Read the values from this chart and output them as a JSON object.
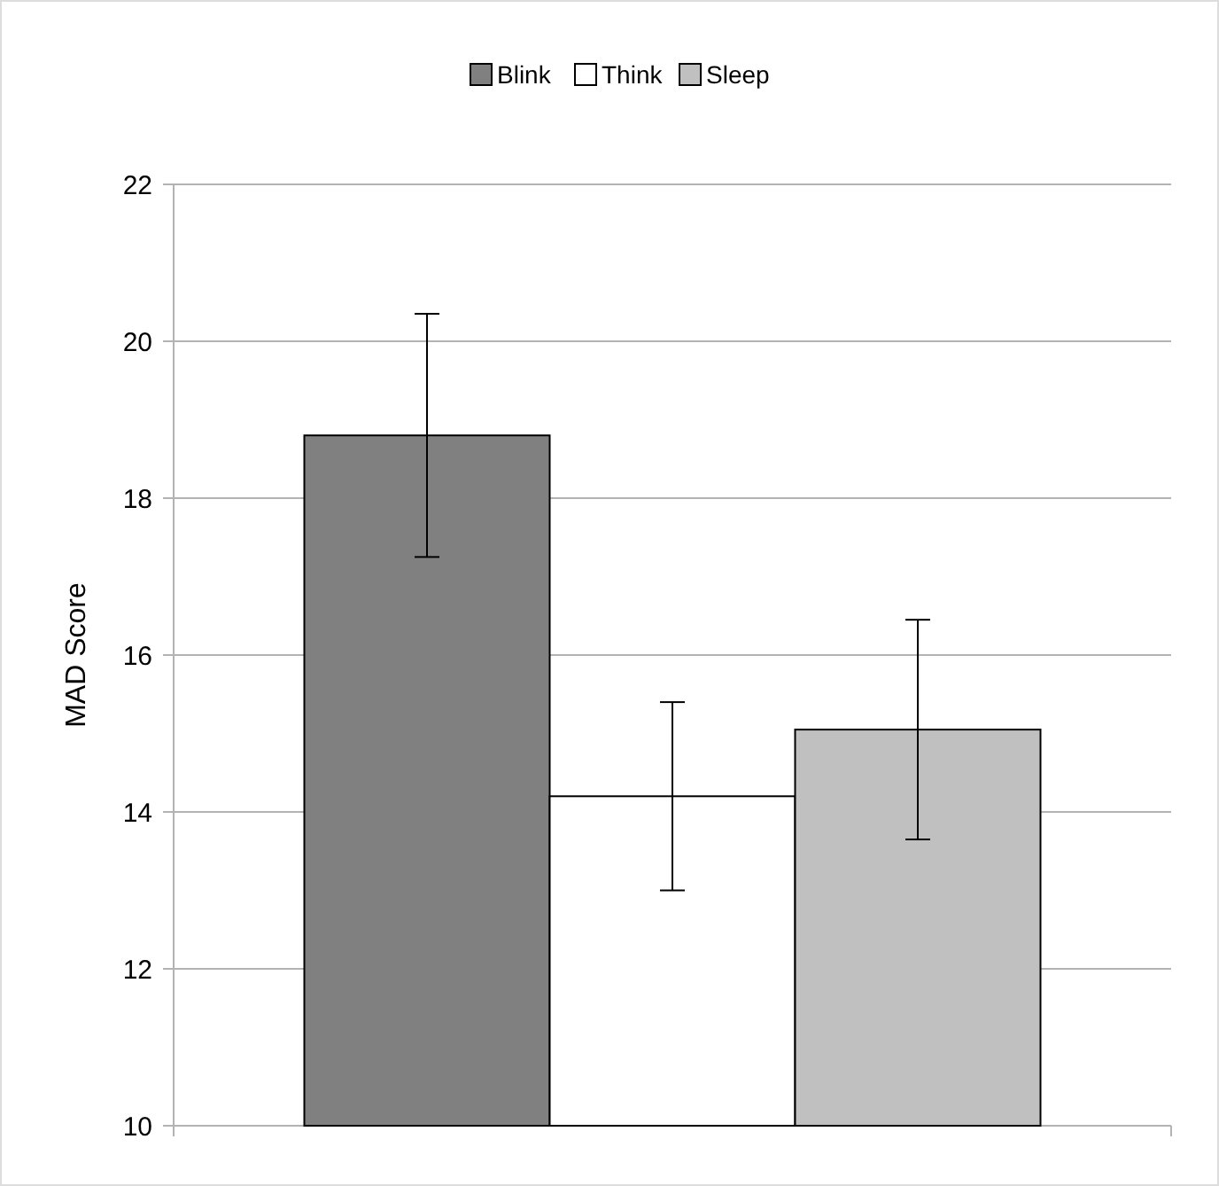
{
  "chart_data": {
    "type": "bar",
    "ylabel": "MAD Score",
    "categories": [
      null
    ],
    "series": [
      {
        "name": "Blink",
        "color": "#808080",
        "values": [
          18.8
        ],
        "errors": [
          1.55
        ]
      },
      {
        "name": "Think",
        "color": "#ffffff",
        "values": [
          14.2
        ],
        "errors": [
          1.2
        ]
      },
      {
        "name": "Sleep",
        "color": "#c0c0c0",
        "values": [
          15.05
        ],
        "errors": [
          1.4
        ]
      }
    ],
    "ylim": [
      10,
      22
    ],
    "yticks": [
      10,
      12,
      14,
      16,
      18,
      20,
      22
    ],
    "grid": "y",
    "legend": "top"
  }
}
